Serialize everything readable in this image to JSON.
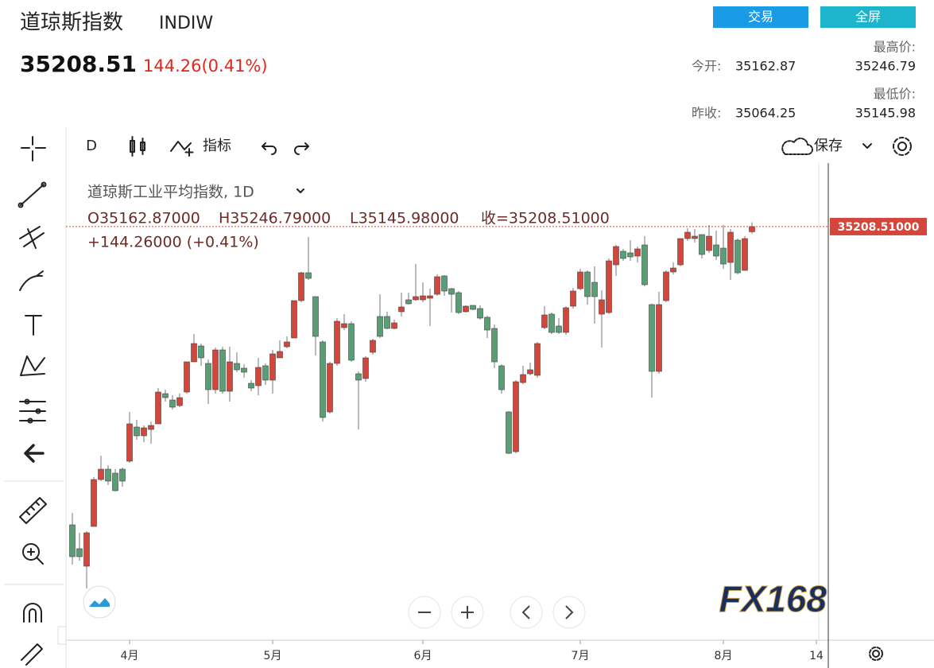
{
  "header": {
    "title": "道琼斯指数",
    "symbol": "INDIW",
    "price": "35208.51",
    "change": "144.26(0.41%)",
    "buttons": [
      "交易",
      "全屏"
    ],
    "stats": [
      {
        "label": "今开:",
        "value": "35162.87"
      },
      {
        "label": "昨收:",
        "value": "35064.25"
      },
      {
        "label": "最高价:",
        "value": "35246.79"
      },
      {
        "label": "最低价:",
        "value": "35145.98"
      }
    ]
  },
  "toolbar": {
    "interval": "D",
    "indicators": "指标",
    "save": "保存"
  },
  "chart_data": {
    "type": "candlestick",
    "title": "道琼斯工业平均指数, 1D",
    "legend": [
      "O35162.87000",
      "H35246.79000",
      "L35145.98000",
      "收=35208.51000"
    ],
    "change": "+144.26000 (+0.41%)",
    "price_label": "35208.51000",
    "up_color": "#d2463b",
    "down_color": "#5a9e76",
    "ylim": [
      31568,
      35698
    ],
    "categories": [
      null,
      null,
      null,
      null,
      null,
      null,
      null,
      null,
      "4月",
      null,
      null,
      null,
      null,
      null,
      null,
      null,
      null,
      null,
      null,
      null,
      null,
      null,
      null,
      null,
      null,
      null,
      null,
      null,
      "5月",
      null,
      null,
      null,
      null,
      null,
      null,
      null,
      null,
      null,
      null,
      null,
      null,
      null,
      null,
      null,
      null,
      null,
      null,
      null,
      null,
      "6月",
      null,
      null,
      null,
      null,
      null,
      null,
      null,
      null,
      null,
      null,
      null,
      null,
      null,
      null,
      null,
      null,
      null,
      null,
      null,
      null,
      null,
      "7月",
      null,
      null,
      null,
      null,
      null,
      null,
      null,
      null,
      null,
      null,
      null,
      null,
      null,
      null,
      null,
      null,
      null,
      null,
      null,
      "8月",
      null,
      null,
      null,
      null,
      null,
      null,
      null,
      null,
      null,
      null,
      null,
      null,
      "14",
      null
    ],
    "open": [
      32583,
      32373,
      32219,
      32569,
      32982,
      33073,
      33038,
      33073,
      33143,
      33444,
      33367,
      33423,
      33472,
      33738,
      33682,
      33633,
      33752,
      34018,
      34158,
      34004,
      33773,
      34123,
      33759,
      34004,
      33962,
      33829,
      33808,
      33983,
      33857,
      34053,
      34151,
      34228,
      34557,
      34802,
      34592,
      34193,
      33577,
      34004,
      34319,
      34354,
      33913,
      33871,
      34102,
      34417,
      34417,
      34312,
      34459,
      34564,
      34564,
      34564,
      34578,
      34613,
      34774,
      34662,
      34627,
      34459,
      34515,
      34487,
      34410,
      34312,
      33983,
      33577,
      33227,
      33836,
      33913,
      33899,
      34319,
      34438,
      34333,
      34277,
      34508,
      34662,
      34809,
      34718,
      34438,
      34452,
      34872,
      34991,
      34977,
      34949,
      35047,
      34522,
      33934,
      34557,
      34809,
      34872,
      35103,
      35103,
      35138,
      34998,
      35047,
      35019,
      34893,
      35089,
      34823,
      35162.87,
      null,
      null,
      null,
      null,
      null,
      null,
      null,
      null,
      null,
      null
    ],
    "high": [
      32688,
      32513,
      32527,
      33003,
      33192,
      33108,
      33073,
      33087,
      33577,
      33507,
      33458,
      33493,
      33787,
      33773,
      33724,
      33738,
      34018,
      34263,
      34179,
      34039,
      34144,
      34151,
      34151,
      34102,
      33997,
      33857,
      34053,
      34004,
      34123,
      34207,
      34242,
      34557,
      34809,
      35117,
      34592,
      34207,
      34018,
      34403,
      34438,
      34375,
      33934,
      34067,
      34221,
      34613,
      34459,
      34389,
      34627,
      34627,
      34879,
      34718,
      34662,
      34788,
      34781,
      34669,
      34641,
      34515,
      34515,
      34515,
      34424,
      34347,
      33997,
      33584,
      33857,
      33983,
      34011,
      34193,
      34508,
      34452,
      34403,
      34508,
      34669,
      34837,
      34823,
      34858,
      34648,
      34928,
      35047,
      35012,
      35089,
      35033,
      35124,
      34529,
      34634,
      34823,
      34893,
      35103,
      35194,
      35187,
      35138,
      35222,
      35173,
      35222,
      35187,
      35103,
      35124,
      35246.79,
      null,
      null,
      null,
      null,
      null,
      null,
      null,
      null,
      null,
      null
    ],
    "low": [
      32233,
      32268,
      32023,
      32569,
      32968,
      32933,
      32877,
      32919,
      33129,
      33332,
      33311,
      33297,
      33472,
      33668,
      33598,
      33619,
      33738,
      34018,
      33983,
      33647,
      33738,
      33738,
      33668,
      33927,
      33878,
      33759,
      33724,
      33815,
      33738,
      34053,
      34137,
      34228,
      34543,
      34739,
      34074,
      33493,
      33563,
      33983,
      34298,
      34018,
      33423,
      33843,
      34081,
      34228,
      34305,
      34305,
      34417,
      34522,
      34557,
      34543,
      34333,
      34599,
      34599,
      34452,
      34438,
      34452,
      34473,
      34389,
      34228,
      33962,
      33738,
      33206,
      33213,
      33822,
      33899,
      33878,
      34305,
      34263,
      34263,
      34256,
      34487,
      34648,
      34522,
      34354,
      34144,
      34438,
      34774,
      34907,
      34907,
      34893,
      34683,
      33703,
      33913,
      34543,
      34788,
      34858,
      35082,
      35068,
      34928,
      34977,
      34914,
      34837,
      34739,
      34788,
      34823,
      35145.98,
      null,
      null,
      null,
      null,
      null,
      null,
      null,
      null,
      null,
      null
    ],
    "close": [
      32303,
      32303,
      32513,
      32982,
      33073,
      32968,
      32884,
      32968,
      33472,
      33367,
      33437,
      33458,
      33752,
      33703,
      33619,
      33703,
      34018,
      34179,
      34053,
      33773,
      34123,
      33759,
      34018,
      33948,
      33927,
      33787,
      33969,
      33857,
      34088,
      34109,
      34193,
      34557,
      34802,
      34753,
      34242,
      33528,
      34004,
      34375,
      34354,
      34032,
      33857,
      34053,
      34207,
      34242,
      34312,
      34361,
      34501,
      34529,
      34592,
      34599,
      34599,
      34767,
      34641,
      34613,
      34452,
      34508,
      34480,
      34403,
      34298,
      34018,
      33773,
      33213,
      33843,
      33906,
      33948,
      34179,
      34431,
      34277,
      34277,
      34494,
      34641,
      34809,
      34592,
      34592,
      34564,
      34907,
      35033,
      34928,
      34942,
      35012,
      34697,
      33934,
      34522,
      34809,
      34844,
      35103,
      35159,
      35124,
      34963,
      35124,
      34949,
      34879,
      35159,
      34802,
      35103,
      35208.51,
      null,
      null,
      null,
      null,
      null,
      null,
      null,
      null,
      null,
      null
    ]
  },
  "logo": "FX168"
}
